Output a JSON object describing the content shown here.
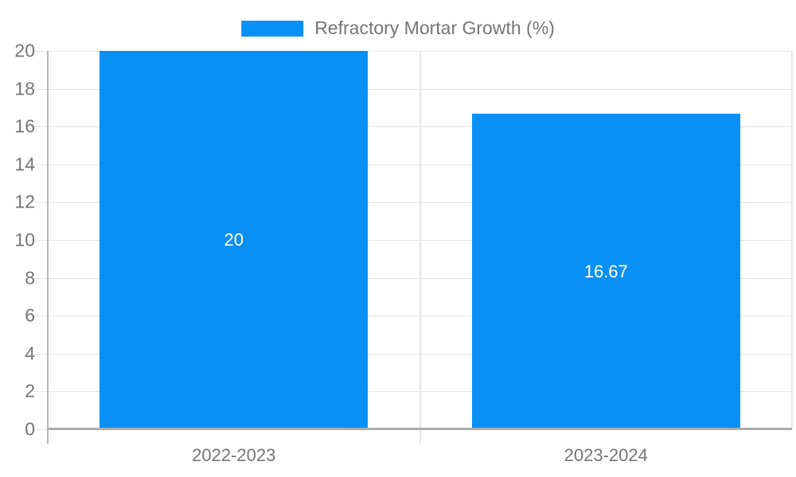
{
  "legend": {
    "label": "Refractory Mortar Growth (%)"
  },
  "chart_data": {
    "type": "bar",
    "title": "Refractory Mortar Growth (%)",
    "categories": [
      "2022-2023",
      "2023-2024"
    ],
    "series": [
      {
        "name": "Refractory Mortar Growth (%)",
        "values": [
          20,
          16.67
        ]
      }
    ],
    "value_labels": [
      "20",
      "16.67"
    ],
    "y_ticks": [
      "0",
      "2",
      "4",
      "6",
      "8",
      "10",
      "12",
      "14",
      "16",
      "18",
      "20"
    ],
    "ylim": [
      0,
      20
    ],
    "xlabel": "",
    "ylabel": "",
    "grid": true,
    "legend_position": "top-center",
    "colors": {
      "bar": "#0a90f5",
      "axis_text": "#757575",
      "value_text": "#ffffff"
    }
  }
}
